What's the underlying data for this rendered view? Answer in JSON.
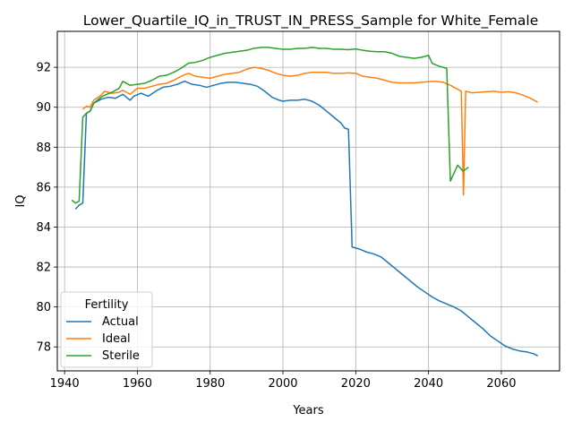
{
  "chart_data": {
    "type": "line",
    "title": "Lower_Quartile_IQ_in_TRUST_IN_PRESS_Sample for White_Female",
    "xlabel": "Years",
    "ylabel": "IQ",
    "xlim": [
      1938,
      2076
    ],
    "ylim": [
      76.8,
      93.8
    ],
    "xticks": [
      "1940",
      "1960",
      "1980",
      "2000",
      "2020",
      "2040",
      "2060"
    ],
    "yticks": [
      "78",
      "80",
      "82",
      "84",
      "86",
      "88",
      "90",
      "92"
    ],
    "grid": true,
    "legend": {
      "title": "Fertility",
      "placement": "lower-left"
    },
    "series": [
      {
        "name": "Actual",
        "color": "#1f77b4",
        "points": [
          [
            1943,
            84.9
          ],
          [
            1944,
            85.1
          ],
          [
            1945,
            85.2
          ],
          [
            1946,
            89.7
          ],
          [
            1947,
            89.8
          ],
          [
            1948,
            90.2
          ],
          [
            1950,
            90.4
          ],
          [
            1952,
            90.5
          ],
          [
            1954,
            90.45
          ],
          [
            1956,
            90.65
          ],
          [
            1958,
            90.35
          ],
          [
            1959,
            90.55
          ],
          [
            1961,
            90.7
          ],
          [
            1963,
            90.55
          ],
          [
            1965,
            90.8
          ],
          [
            1967,
            91.0
          ],
          [
            1969,
            91.05
          ],
          [
            1971,
            91.15
          ],
          [
            1973,
            91.3
          ],
          [
            1975,
            91.15
          ],
          [
            1977,
            91.1
          ],
          [
            1979,
            91.0
          ],
          [
            1981,
            91.1
          ],
          [
            1983,
            91.2
          ],
          [
            1985,
            91.25
          ],
          [
            1987,
            91.25
          ],
          [
            1989,
            91.2
          ],
          [
            1991,
            91.15
          ],
          [
            1993,
            91.05
          ],
          [
            1995,
            90.8
          ],
          [
            1997,
            90.5
          ],
          [
            1999,
            90.35
          ],
          [
            2000,
            90.3
          ],
          [
            2002,
            90.35
          ],
          [
            2004,
            90.35
          ],
          [
            2006,
            90.4
          ],
          [
            2008,
            90.3
          ],
          [
            2010,
            90.1
          ],
          [
            2012,
            89.8
          ],
          [
            2014,
            89.5
          ],
          [
            2016,
            89.2
          ],
          [
            2017,
            88.95
          ],
          [
            2018,
            88.9
          ],
          [
            2019,
            83.0
          ],
          [
            2021,
            82.9
          ],
          [
            2023,
            82.75
          ],
          [
            2025,
            82.65
          ],
          [
            2027,
            82.5
          ],
          [
            2029,
            82.2
          ],
          [
            2031,
            81.9
          ],
          [
            2033,
            81.6
          ],
          [
            2035,
            81.3
          ],
          [
            2037,
            81.0
          ],
          [
            2039,
            80.75
          ],
          [
            2041,
            80.5
          ],
          [
            2043,
            80.3
          ],
          [
            2045,
            80.15
          ],
          [
            2047,
            80.0
          ],
          [
            2049,
            79.8
          ],
          [
            2051,
            79.5
          ],
          [
            2053,
            79.2
          ],
          [
            2055,
            78.9
          ],
          [
            2057,
            78.55
          ],
          [
            2059,
            78.3
          ],
          [
            2061,
            78.05
          ],
          [
            2063,
            77.9
          ],
          [
            2065,
            77.8
          ],
          [
            2067,
            77.75
          ],
          [
            2069,
            77.65
          ],
          [
            2070,
            77.55
          ]
        ]
      },
      {
        "name": "Ideal",
        "color": "#ff7f0e",
        "points": [
          [
            1945,
            89.9
          ],
          [
            1946,
            90.05
          ],
          [
            1947,
            90.0
          ],
          [
            1948,
            90.35
          ],
          [
            1950,
            90.6
          ],
          [
            1951,
            90.8
          ],
          [
            1953,
            90.7
          ],
          [
            1955,
            90.75
          ],
          [
            1956,
            90.85
          ],
          [
            1958,
            90.65
          ],
          [
            1960,
            90.95
          ],
          [
            1962,
            90.95
          ],
          [
            1964,
            91.05
          ],
          [
            1966,
            91.15
          ],
          [
            1968,
            91.2
          ],
          [
            1970,
            91.35
          ],
          [
            1972,
            91.55
          ],
          [
            1974,
            91.7
          ],
          [
            1976,
            91.55
          ],
          [
            1978,
            91.5
          ],
          [
            1980,
            91.45
          ],
          [
            1982,
            91.55
          ],
          [
            1984,
            91.65
          ],
          [
            1986,
            91.7
          ],
          [
            1988,
            91.75
          ],
          [
            1990,
            91.9
          ],
          [
            1992,
            92.0
          ],
          [
            1994,
            91.95
          ],
          [
            1996,
            91.85
          ],
          [
            1998,
            91.7
          ],
          [
            2000,
            91.6
          ],
          [
            2002,
            91.55
          ],
          [
            2004,
            91.6
          ],
          [
            2006,
            91.7
          ],
          [
            2008,
            91.75
          ],
          [
            2010,
            91.75
          ],
          [
            2012,
            91.75
          ],
          [
            2014,
            91.7
          ],
          [
            2016,
            91.7
          ],
          [
            2018,
            91.72
          ],
          [
            2020,
            91.7
          ],
          [
            2022,
            91.55
          ],
          [
            2024,
            91.5
          ],
          [
            2026,
            91.45
          ],
          [
            2028,
            91.35
          ],
          [
            2030,
            91.25
          ],
          [
            2032,
            91.22
          ],
          [
            2034,
            91.22
          ],
          [
            2036,
            91.22
          ],
          [
            2038,
            91.25
          ],
          [
            2040,
            91.28
          ],
          [
            2042,
            91.3
          ],
          [
            2044,
            91.25
          ],
          [
            2046,
            91.1
          ],
          [
            2048,
            90.9
          ],
          [
            2049,
            90.8
          ],
          [
            2049.6,
            85.6
          ],
          [
            2050.2,
            90.8
          ],
          [
            2052,
            90.72
          ],
          [
            2054,
            90.75
          ],
          [
            2056,
            90.78
          ],
          [
            2058,
            90.8
          ],
          [
            2060,
            90.75
          ],
          [
            2062,
            90.78
          ],
          [
            2064,
            90.72
          ],
          [
            2066,
            90.6
          ],
          [
            2068,
            90.45
          ],
          [
            2070,
            90.25
          ]
        ]
      },
      {
        "name": "Sterile",
        "color": "#2ca02c",
        "points": [
          [
            1942,
            85.35
          ],
          [
            1943,
            85.2
          ],
          [
            1944,
            85.3
          ],
          [
            1945,
            89.5
          ],
          [
            1946,
            89.7
          ],
          [
            1947,
            89.8
          ],
          [
            1948,
            90.2
          ],
          [
            1950,
            90.5
          ],
          [
            1951,
            90.6
          ],
          [
            1953,
            90.75
          ],
          [
            1955,
            90.95
          ],
          [
            1956,
            91.3
          ],
          [
            1958,
            91.1
          ],
          [
            1960,
            91.15
          ],
          [
            1962,
            91.2
          ],
          [
            1964,
            91.35
          ],
          [
            1966,
            91.55
          ],
          [
            1968,
            91.6
          ],
          [
            1970,
            91.75
          ],
          [
            1972,
            91.95
          ],
          [
            1974,
            92.2
          ],
          [
            1976,
            92.25
          ],
          [
            1978,
            92.35
          ],
          [
            1980,
            92.5
          ],
          [
            1982,
            92.6
          ],
          [
            1984,
            92.7
          ],
          [
            1986,
            92.75
          ],
          [
            1988,
            92.8
          ],
          [
            1990,
            92.85
          ],
          [
            1992,
            92.95
          ],
          [
            1994,
            93.0
          ],
          [
            1996,
            93.0
          ],
          [
            1998,
            92.95
          ],
          [
            2000,
            92.9
          ],
          [
            2002,
            92.9
          ],
          [
            2004,
            92.95
          ],
          [
            2006,
            92.95
          ],
          [
            2008,
            93.0
          ],
          [
            2010,
            92.95
          ],
          [
            2012,
            92.95
          ],
          [
            2014,
            92.9
          ],
          [
            2016,
            92.9
          ],
          [
            2018,
            92.88
          ],
          [
            2020,
            92.92
          ],
          [
            2022,
            92.85
          ],
          [
            2024,
            92.8
          ],
          [
            2026,
            92.78
          ],
          [
            2028,
            92.78
          ],
          [
            2030,
            92.7
          ],
          [
            2032,
            92.55
          ],
          [
            2034,
            92.5
          ],
          [
            2036,
            92.45
          ],
          [
            2038,
            92.5
          ],
          [
            2040,
            92.6
          ],
          [
            2041,
            92.2
          ],
          [
            2043,
            92.05
          ],
          [
            2045,
            91.95
          ],
          [
            2046,
            86.3
          ],
          [
            2048,
            87.1
          ],
          [
            2049.5,
            86.8
          ],
          [
            2051,
            87.0
          ]
        ]
      }
    ]
  }
}
